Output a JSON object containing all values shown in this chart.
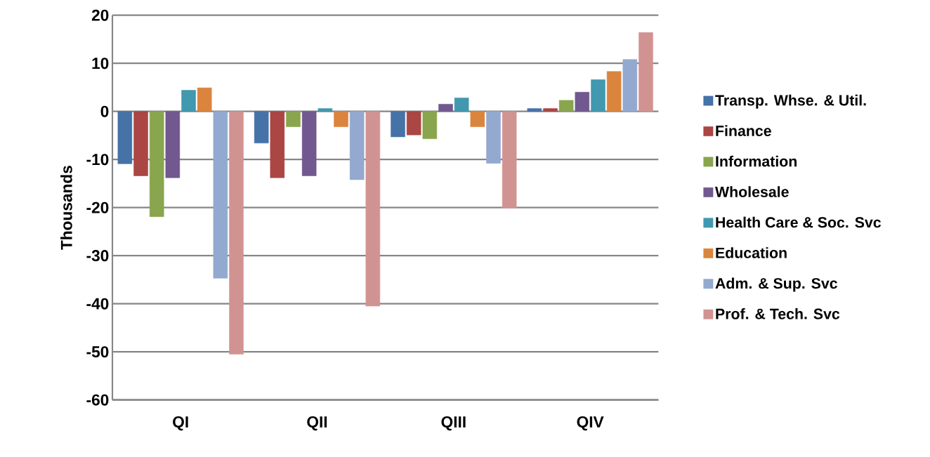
{
  "chart_data": {
    "type": "bar",
    "ylabel": "Thousands",
    "categories": [
      "QI",
      "QII",
      "QIII",
      "QIV"
    ],
    "series": [
      {
        "name": "Transp. Whse. & Util.",
        "color": "#4572a7",
        "values": [
          -10.9,
          -6.6,
          -5.3,
          0.6
        ]
      },
      {
        "name": "Finance",
        "color": "#aa4643",
        "values": [
          -13.4,
          -13.8,
          -4.9,
          0.6
        ]
      },
      {
        "name": "Information",
        "color": "#89a54e",
        "values": [
          -21.9,
          -3.2,
          -5.7,
          2.3
        ]
      },
      {
        "name": "Wholesale",
        "color": "#71588f",
        "values": [
          -13.8,
          -13.4,
          1.5,
          4.0
        ]
      },
      {
        "name": "Health Care & Soc. Svc",
        "color": "#4198af",
        "values": [
          4.4,
          0.6,
          2.8,
          6.6
        ]
      },
      {
        "name": "Education",
        "color": "#db843d",
        "values": [
          4.9,
          -3.2,
          -3.2,
          8.3
        ]
      },
      {
        "name": "Adm. & Sup. Svc",
        "color": "#93a9cf",
        "values": [
          -34.7,
          -14.2,
          -10.8,
          10.8
        ]
      },
      {
        "name": "Prof. & Tech. Svc",
        "color": "#d19392",
        "values": [
          -50.5,
          -40.5,
          -20.1,
          16.4
        ]
      }
    ],
    "ylim": [
      -60,
      20
    ],
    "yticks": [
      -60,
      -50,
      -40,
      -30,
      -20,
      -10,
      0,
      10,
      20
    ],
    "grid": "y",
    "legend": "right"
  }
}
